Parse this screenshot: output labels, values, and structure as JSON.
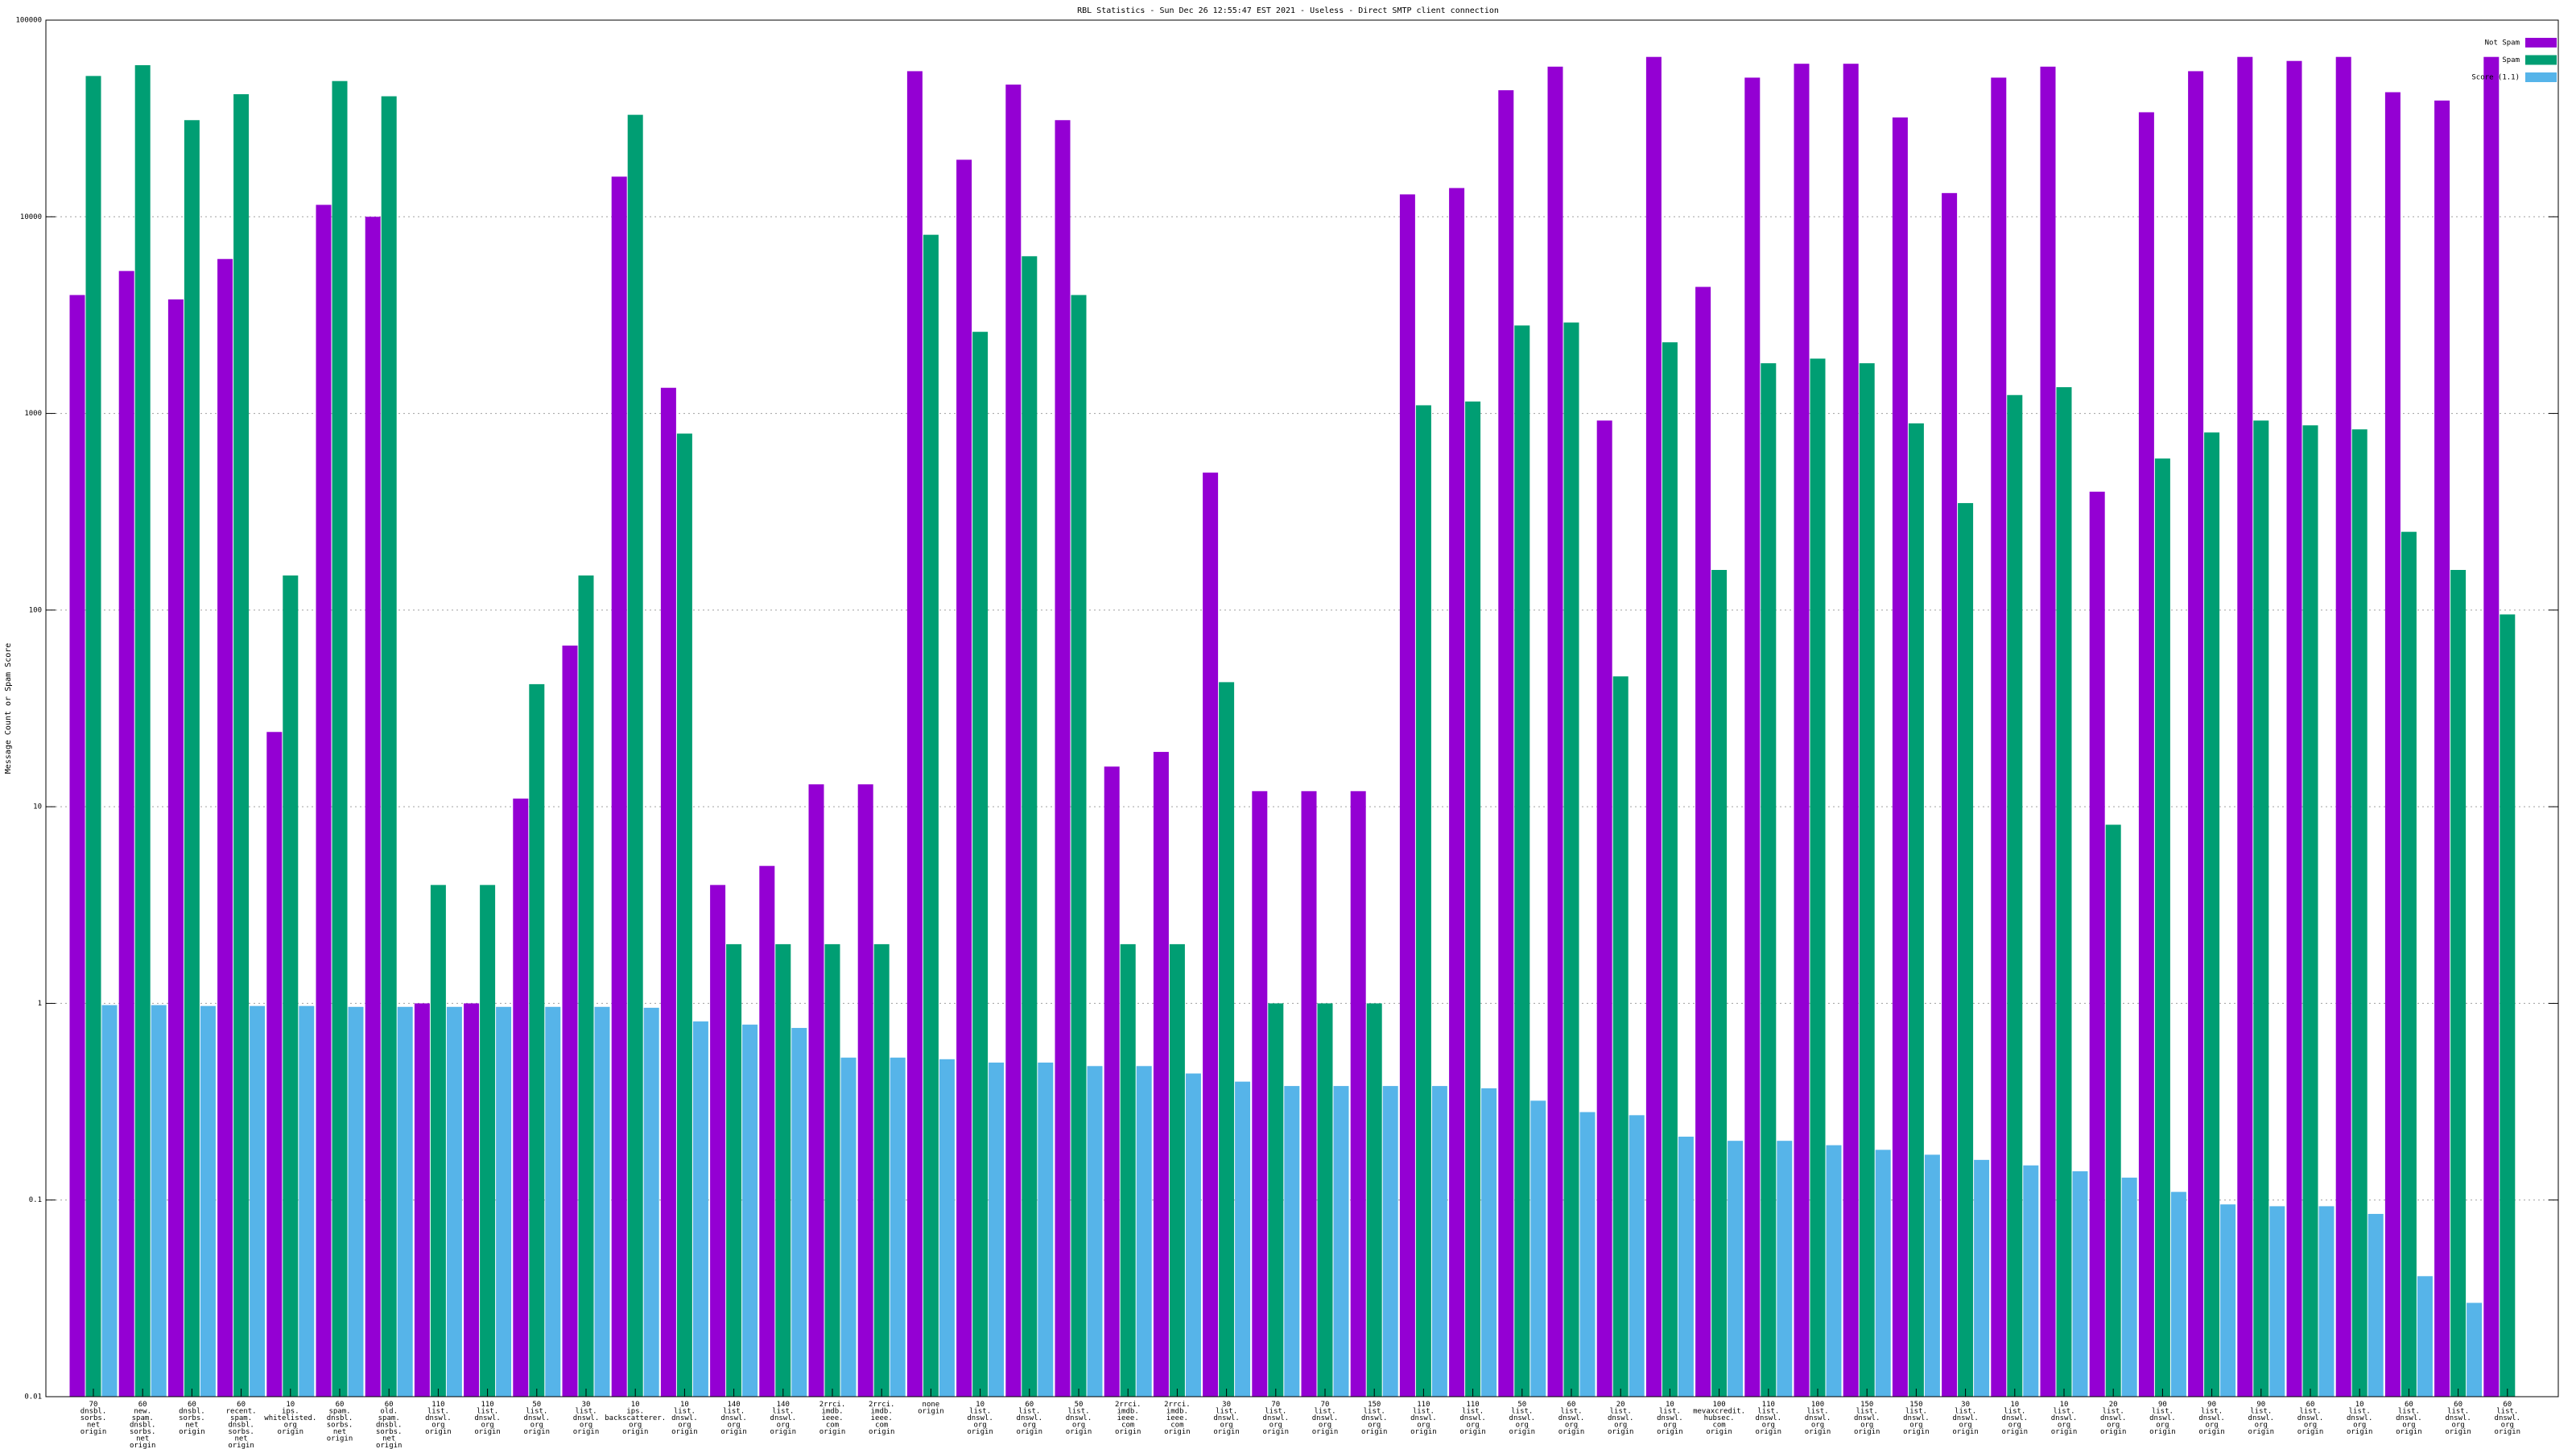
{
  "chart_data": {
    "type": "bar",
    "title": "RBL Statistics - Sun Dec 26 12:55:47 EST 2021 - Useless - Direct SMTP client connection",
    "y_label": "Message Count or Spam Score",
    "log_y": true,
    "grid": true,
    "legend": "top-right",
    "ylim": [
      0.01,
      100000
    ],
    "yticks": [
      0.01,
      0.1,
      1,
      10,
      100,
      1000,
      10000,
      100000
    ],
    "categories": [
      "70\ndnsbl.\nsorbs.\nnet\norigin",
      "60\nnew.\nspam.\ndnsbl.\nsorbs.\nnet\norigin",
      "60\ndnsbl.\nsorbs.\nnet\norigin",
      "60\nrecent.\nspam.\ndnsbl.\nsorbs.\nnet\norigin",
      "10\nips.\nwhitelisted.\norg\norigin",
      "60\nspam.\ndnsbl.\nsorbs.\nnet\norigin",
      "60\nold.\nspam.\ndnsbl.\nsorbs.\nnet\norigin",
      "110\nlist.\ndnswl.\norg\norigin",
      "110\nlist.\ndnswl.\norg\norigin",
      "50\nlist.\ndnswl.\norg\norigin",
      "30\nlist.\ndnswl.\norg\norigin",
      "10\nips.\nbackscatterer.\norg\norigin",
      "10\nlist.\ndnswl.\norg\norigin",
      "140\nlist.\ndnswl.\norg\norigin",
      "140\nlist.\ndnswl.\norg\norigin",
      "2rrci.\nimdb.\nieee.\ncom\norigin",
      "2rrci.\nimdb.\nieee.\ncom\norigin",
      "none\norigin",
      "10\nlist.\ndnswl.\norg\norigin",
      "60\nlist.\ndnswl.\norg\norigin",
      "50\nlist.\ndnswl.\norg\norigin",
      "2rrci.\nimdb.\nieee.\ncom\norigin",
      "2rrci.\nimdb.\nieee.\ncom\norigin",
      "30\nlist.\ndnswl.\norg\norigin",
      "70\nlist.\ndnswl.\norg\norigin",
      "70\nlist.\ndnswl.\norg\norigin",
      "150\nlist.\ndnswl.\norg\norigin",
      "110\nlist.\ndnswl.\norg\norigin",
      "110\nlist.\ndnswl.\norg\norigin",
      "50\nlist.\ndnswl.\norg\norigin",
      "60\nlist.\ndnswl.\norg\norigin",
      "20\nlist.\ndnswl.\norg\norigin",
      "10\nlist.\ndnswl.\norg\norigin",
      "100\nmevaxcredit.\nhubsec.\ncom\norigin",
      "110\nlist.\ndnswl.\norg\norigin",
      "100\nlist.\ndnswl.\norg\norigin",
      "150\nlist.\ndnswl.\norg\norigin",
      "150\nlist.\ndnswl.\norg\norigin",
      "30\nlist.\ndnswl.\norg\norigin",
      "10\nlist.\ndnswl.\norg\norigin",
      "10\nlist.\ndnswl.\norg\norigin",
      "20\nlist.\ndnswl.\norg\norigin",
      "90\nlist.\ndnswl.\norg\norigin",
      "90\nlist.\ndnswl.\norg\norigin",
      "90\nlist.\ndnswl.\norg\norigin",
      "60\nlist.\ndnswl.\norg\norigin",
      "10\nlist.\ndnswl.\norg\norigin",
      "60\nlist.\ndnswl.\norg\norigin",
      "60\nlist.\ndnswl.\norg\norigin",
      "60\nlist.\ndnswl.\norg\norigin"
    ],
    "series": [
      {
        "name": "Not Spam",
        "color": "#9400d3",
        "values": [
          4000,
          5300,
          3800,
          6100,
          24,
          11500,
          10000,
          1,
          1,
          11,
          66,
          16000,
          1350,
          4,
          5,
          13,
          13,
          55000,
          19500,
          47000,
          31000,
          16,
          19,
          500,
          12,
          12,
          12,
          13000,
          14000,
          44000,
          58000,
          920,
          65000,
          4400,
          51000,
          60000,
          60000,
          32000,
          13200,
          51000,
          58000,
          400,
          34000,
          55000,
          65000,
          62000,
          65000,
          43000,
          39000,
          65000
        ]
      },
      {
        "name": "Spam",
        "color": "#009e73",
        "values": [
          52000,
          59000,
          31000,
          42000,
          150,
          49000,
          41000,
          4,
          4,
          42,
          150,
          33000,
          790,
          2,
          2,
          2,
          2,
          8100,
          2600,
          6300,
          4000,
          2,
          2,
          43,
          1,
          1,
          1,
          1100,
          1150,
          2800,
          2900,
          46,
          2300,
          160,
          1800,
          1900,
          1800,
          890,
          350,
          1240,
          1360,
          8.1,
          590,
          800,
          920,
          870,
          830,
          250,
          160,
          95
        ]
      },
      {
        "name": "Score (1.1)",
        "color": "#56b4e9",
        "values": [
          0.98,
          0.98,
          0.97,
          0.97,
          0.97,
          0.96,
          0.96,
          0.96,
          0.96,
          0.96,
          0.96,
          0.95,
          0.81,
          0.78,
          0.75,
          0.53,
          0.53,
          0.52,
          0.5,
          0.5,
          0.48,
          0.48,
          0.44,
          0.4,
          0.38,
          0.38,
          0.38,
          0.38,
          0.37,
          0.32,
          0.28,
          0.27,
          0.21,
          0.2,
          0.2,
          0.19,
          0.18,
          0.17,
          0.16,
          0.15,
          0.14,
          0.13,
          0.11,
          0.095,
          0.093,
          0.093,
          0.085,
          0.041,
          0.03,
          null
        ]
      }
    ]
  }
}
